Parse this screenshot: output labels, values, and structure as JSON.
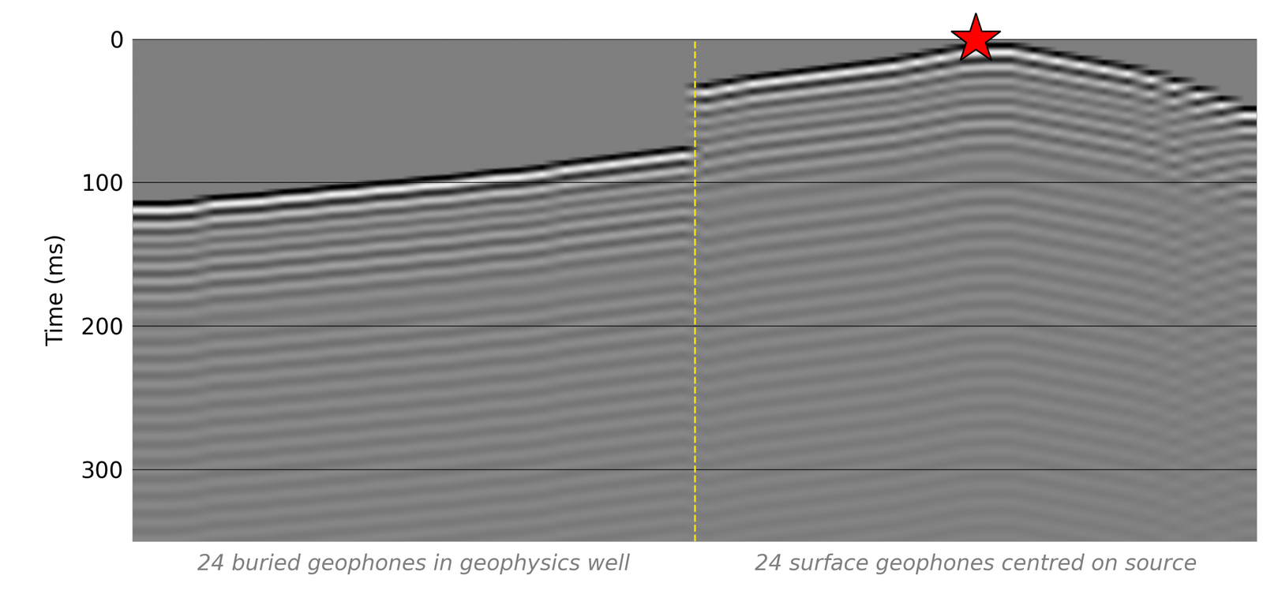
{
  "chart_data": {
    "type": "seismic_gather",
    "ylabel": "Time (ms)",
    "xlim": [
      0.5,
      48.5
    ],
    "ylim": [
      350,
      0
    ],
    "yticks": [
      0,
      100,
      200,
      300
    ],
    "grid": true,
    "tick_labels": "y",
    "divider_x": 24.5,
    "source_x": 36.5,
    "series": [
      {
        "name": "24 buried geophones in geophysics well",
        "x": [
          1,
          2,
          3,
          4,
          5,
          6,
          7,
          8,
          9,
          10,
          11,
          12,
          13,
          14,
          15,
          16,
          17,
          18,
          19,
          20,
          21,
          22,
          23,
          24
        ],
        "values": [
          112,
          112,
          111,
          108,
          107,
          106,
          104,
          103,
          101,
          100,
          98,
          97,
          95,
          94,
          92,
          90,
          89,
          87,
          84,
          82,
          80,
          78,
          76,
          74
        ]
      },
      {
        "name": "24 surface geophones centred on source",
        "x": [
          25,
          26,
          27,
          28,
          29,
          30,
          31,
          32,
          33,
          34,
          35,
          36,
          37,
          38,
          39,
          40,
          41,
          42,
          43,
          44,
          45,
          46,
          47,
          48
        ],
        "values": [
          30,
          27,
          24,
          22,
          20,
          18,
          16,
          14,
          12,
          9,
          6,
          3,
          2,
          2,
          5,
          8,
          11,
          14,
          17,
          21,
          26,
          32,
          39,
          46
        ]
      }
    ]
  }
}
